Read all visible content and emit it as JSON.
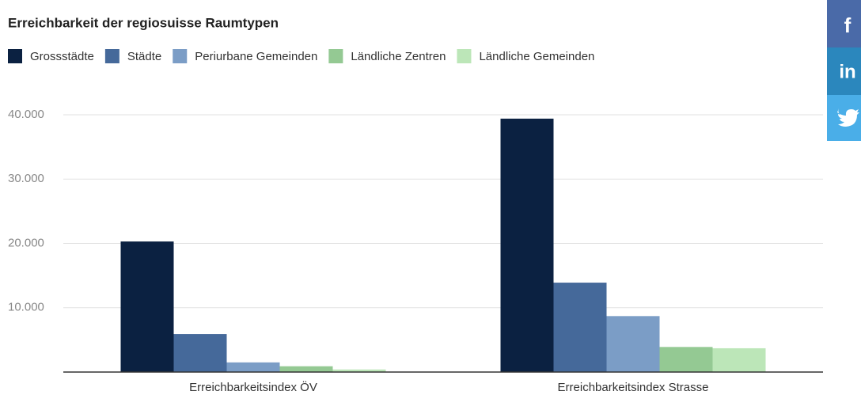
{
  "chart_data": {
    "type": "bar",
    "title": "Erreichbarkeit der regiosuisse Raumtypen",
    "categories": [
      "Erreichbarkeitsindex ÖV",
      "Erreichbarkeitsindex Strasse"
    ],
    "series": [
      {
        "name": "Grossstädte",
        "color": "#0b2141",
        "values": [
          20300,
          39400
        ]
      },
      {
        "name": "Städte",
        "color": "#45699a",
        "values": [
          5900,
          13900
        ]
      },
      {
        "name": "Periurbane Gemeinden",
        "color": "#7b9dc6",
        "values": [
          1500,
          8700
        ]
      },
      {
        "name": "Ländliche Zentren",
        "color": "#94c993",
        "values": [
          900,
          3900
        ]
      },
      {
        "name": "Ländliche Gemeinden",
        "color": "#bce6b8",
        "values": [
          400,
          3700
        ]
      }
    ],
    "ylim": [
      0,
      40000
    ],
    "yticks": [
      {
        "value": 10000,
        "label": "10.000"
      },
      {
        "value": 20000,
        "label": "20.000"
      },
      {
        "value": 30000,
        "label": "30.000"
      },
      {
        "value": 40000,
        "label": "40.000"
      }
    ],
    "grid": true
  },
  "share_buttons": [
    "f",
    "in"
  ]
}
